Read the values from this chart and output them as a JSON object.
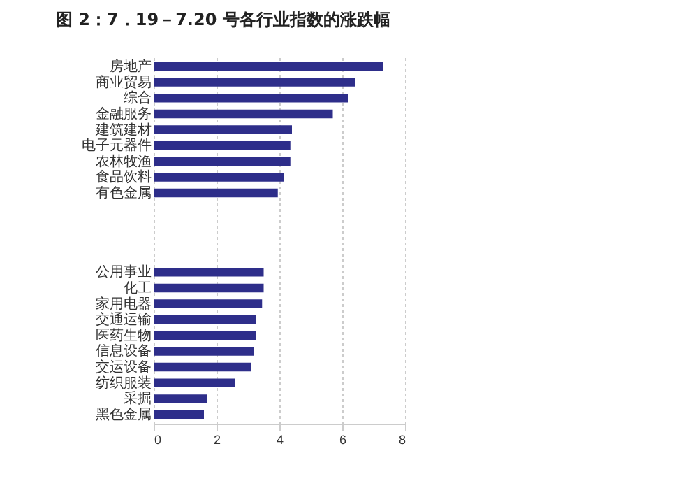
{
  "chart_data": {
    "type": "bar",
    "orientation": "horizontal",
    "title": "图 2：7．19－7.20 号各行业指数的涨跌幅",
    "categories": [
      "房地产",
      "商业贸易",
      "综合",
      "金融服务",
      "建筑建材",
      "电子元器件",
      "农林牧渔",
      "食品饮料",
      "有色金属",
      null,
      null,
      null,
      null,
      "公用事业",
      "化工",
      "家用电器",
      "交通运输",
      "医药生物",
      "信息设备",
      "交运设备",
      "纺织服装",
      "采掘",
      "黑色金属"
    ],
    "values": [
      7.3,
      6.4,
      6.2,
      5.7,
      4.4,
      4.35,
      4.35,
      4.15,
      3.95,
      null,
      null,
      null,
      null,
      3.5,
      3.5,
      3.45,
      3.25,
      3.25,
      3.2,
      3.1,
      2.6,
      1.7,
      1.6
    ],
    "color": "#2e2e8a",
    "xlim": [
      0,
      8
    ],
    "xticks": [
      0,
      2,
      4,
      6,
      8
    ],
    "grid": "x"
  }
}
